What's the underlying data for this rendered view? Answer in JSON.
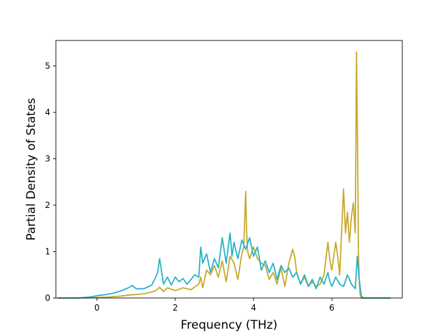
{
  "chart_data": {
    "type": "line",
    "title": "",
    "xlabel": "Frequency (THz)",
    "ylabel": "Partial Density of States",
    "xlim": [
      -1.05,
      7.8
    ],
    "ylim": [
      0,
      5.55
    ],
    "xticks": [
      0,
      2,
      4,
      6
    ],
    "yticks": [
      0,
      1,
      2,
      3,
      4,
      5
    ],
    "grid": false,
    "legend": "none",
    "series": [
      {
        "color": "#c8a82c",
        "x": [
          -1.0,
          -0.5,
          0.0,
          0.3,
          0.6,
          0.9,
          1.2,
          1.4,
          1.5,
          1.6,
          1.7,
          1.8,
          2.0,
          2.2,
          2.4,
          2.6,
          2.65,
          2.7,
          2.8,
          2.9,
          3.0,
          3.1,
          3.2,
          3.3,
          3.4,
          3.5,
          3.6,
          3.7,
          3.75,
          3.8,
          3.82,
          3.85,
          3.9,
          4.0,
          4.1,
          4.2,
          4.3,
          4.4,
          4.5,
          4.6,
          4.7,
          4.8,
          4.9,
          5.0,
          5.05,
          5.1,
          5.2,
          5.3,
          5.4,
          5.5,
          5.6,
          5.7,
          5.8,
          5.9,
          5.95,
          6.0,
          6.1,
          6.15,
          6.2,
          6.3,
          6.35,
          6.4,
          6.45,
          6.5,
          6.55,
          6.6,
          6.63,
          6.66,
          6.68,
          6.7,
          6.72,
          6.75,
          6.8,
          7.0,
          7.5
        ],
        "values": [
          0.0,
          0.0,
          0.01,
          0.02,
          0.04,
          0.07,
          0.09,
          0.13,
          0.16,
          0.23,
          0.14,
          0.22,
          0.16,
          0.22,
          0.18,
          0.3,
          0.45,
          0.22,
          0.6,
          0.5,
          0.7,
          0.45,
          0.8,
          0.35,
          0.9,
          0.75,
          0.4,
          0.95,
          1.1,
          2.3,
          1.5,
          1.0,
          0.85,
          1.1,
          0.85,
          0.75,
          0.7,
          0.4,
          0.55,
          0.3,
          0.65,
          0.25,
          0.75,
          1.05,
          0.9,
          0.55,
          0.3,
          0.45,
          0.25,
          0.35,
          0.25,
          0.3,
          0.5,
          1.2,
          0.8,
          0.6,
          1.2,
          0.9,
          0.5,
          2.35,
          1.4,
          1.85,
          1.2,
          1.75,
          2.05,
          1.4,
          5.3,
          3.0,
          1.0,
          0.35,
          0.1,
          0.0,
          0.0,
          0.0,
          0.0
        ]
      },
      {
        "color": "#27b2c9",
        "x": [
          -1.0,
          -0.5,
          -0.2,
          0.0,
          0.2,
          0.4,
          0.6,
          0.8,
          0.9,
          1.0,
          1.2,
          1.4,
          1.5,
          1.55,
          1.6,
          1.7,
          1.8,
          1.9,
          2.0,
          2.1,
          2.2,
          2.3,
          2.4,
          2.5,
          2.6,
          2.65,
          2.7,
          2.8,
          2.9,
          3.0,
          3.1,
          3.2,
          3.3,
          3.4,
          3.45,
          3.5,
          3.6,
          3.7,
          3.8,
          3.9,
          4.0,
          4.1,
          4.2,
          4.3,
          4.4,
          4.5,
          4.6,
          4.7,
          4.8,
          4.9,
          5.0,
          5.1,
          5.2,
          5.3,
          5.4,
          5.5,
          5.6,
          5.7,
          5.8,
          5.9,
          5.95,
          6.0,
          6.1,
          6.2,
          6.3,
          6.4,
          6.5,
          6.6,
          6.65,
          6.7,
          6.75,
          6.8,
          7.0,
          7.5
        ],
        "values": [
          0.0,
          0.0,
          0.02,
          0.05,
          0.07,
          0.1,
          0.15,
          0.22,
          0.27,
          0.2,
          0.2,
          0.28,
          0.45,
          0.55,
          0.85,
          0.3,
          0.45,
          0.28,
          0.45,
          0.35,
          0.42,
          0.3,
          0.4,
          0.5,
          0.45,
          1.1,
          0.75,
          0.95,
          0.55,
          0.85,
          0.65,
          1.3,
          0.75,
          1.4,
          0.9,
          1.2,
          0.85,
          1.25,
          1.05,
          1.3,
          0.9,
          1.1,
          0.6,
          0.8,
          0.55,
          0.75,
          0.4,
          0.7,
          0.55,
          0.65,
          0.45,
          0.55,
          0.3,
          0.5,
          0.25,
          0.4,
          0.2,
          0.45,
          0.3,
          0.55,
          0.35,
          0.25,
          0.45,
          0.3,
          0.25,
          0.5,
          0.3,
          0.2,
          0.9,
          0.4,
          0.05,
          0.0,
          0.0,
          0.0
        ]
      }
    ]
  }
}
